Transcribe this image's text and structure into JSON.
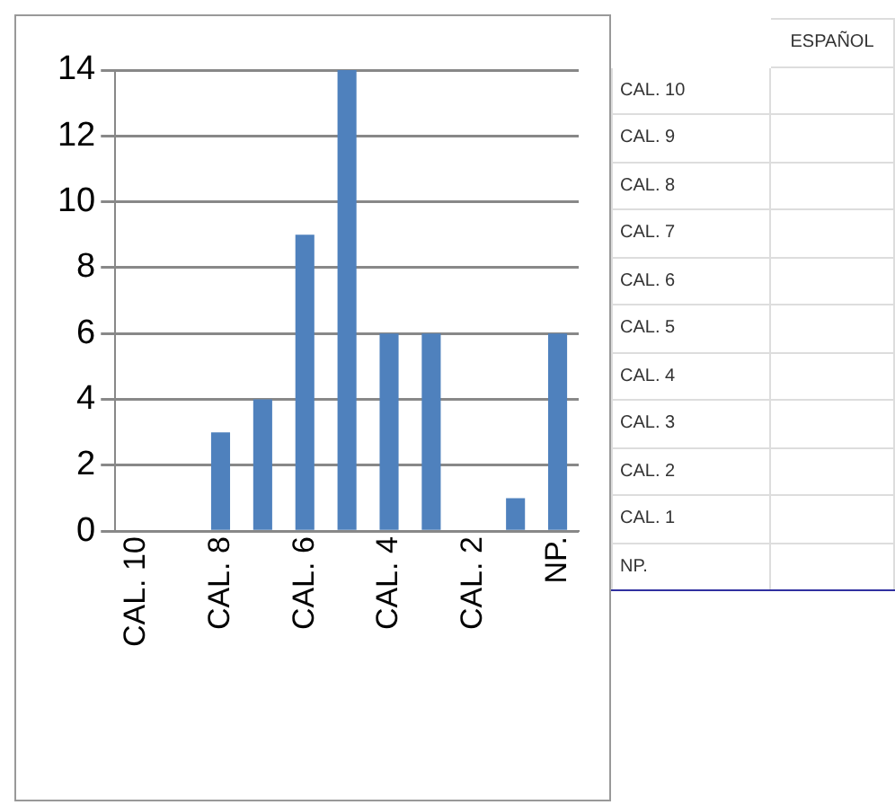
{
  "chart_data": {
    "type": "bar",
    "categories": [
      "CAL. 10",
      null,
      "CAL. 8",
      null,
      "CAL. 6",
      null,
      "CAL. 4",
      null,
      "CAL. 2",
      null,
      "NP."
    ],
    "values": [
      0,
      0,
      3,
      4,
      9,
      14,
      6,
      6,
      0,
      1,
      6
    ],
    "color": "#4f81bd",
    "ylim": [
      0,
      14
    ],
    "yticks": [
      0,
      2,
      4,
      6,
      8,
      10,
      12,
      14
    ],
    "grid": "y",
    "legend": false,
    "annotations": [
      "ESPAÑOL",
      "CAL. 10",
      "CAL. 9",
      "CAL. 8",
      "CAL. 7",
      "CAL. 6",
      "CAL. 5",
      "CAL. 4",
      "CAL. 3",
      "CAL. 2",
      "CAL. 1",
      "NP."
    ]
  }
}
